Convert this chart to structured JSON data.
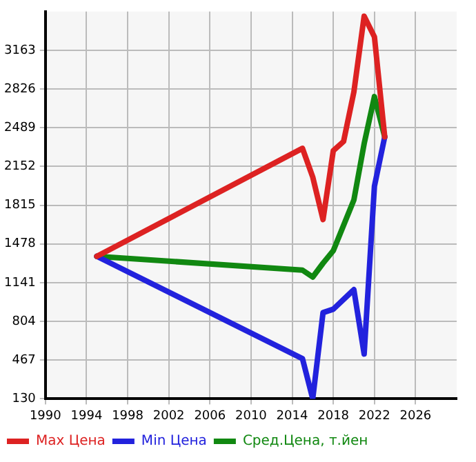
{
  "chart_data": {
    "type": "line",
    "xlim": [
      1990,
      2030
    ],
    "xticks": [
      1990,
      1994,
      1998,
      2002,
      2006,
      2010,
      2014,
      2018,
      2022,
      2026
    ],
    "ylim": [
      130,
      3500
    ],
    "yticks": [
      130,
      467,
      804,
      1141,
      1478,
      1815,
      2152,
      2489,
      2826,
      3163
    ],
    "grid": true,
    "legend": "bottom",
    "marker": "none",
    "series": [
      {
        "name": "Max Цена",
        "color": "#dd2222",
        "x": [
          1995,
          2015,
          2016,
          2017,
          2018,
          2019,
          2020,
          2021,
          2022,
          2023
        ],
        "values": [
          1370,
          2310,
          2060,
          1690,
          2290,
          2370,
          2800,
          3460,
          3280,
          2410
        ]
      },
      {
        "name": "Min Цена",
        "color": "#2222dd",
        "x": [
          1995,
          2015,
          2016,
          2017,
          2018,
          2020,
          2021,
          2022,
          2023
        ],
        "values": [
          1370,
          480,
          130,
          880,
          910,
          1080,
          520,
          1980,
          2410
        ]
      },
      {
        "name": "Сред.Цена, т.йен",
        "color": "#118811",
        "x": [
          1995,
          2015,
          2016,
          2017,
          2018,
          2020,
          2021,
          2022,
          2023
        ],
        "values": [
          1370,
          1250,
          1190,
          1310,
          1420,
          1860,
          2350,
          2760,
          2410
        ]
      }
    ]
  }
}
